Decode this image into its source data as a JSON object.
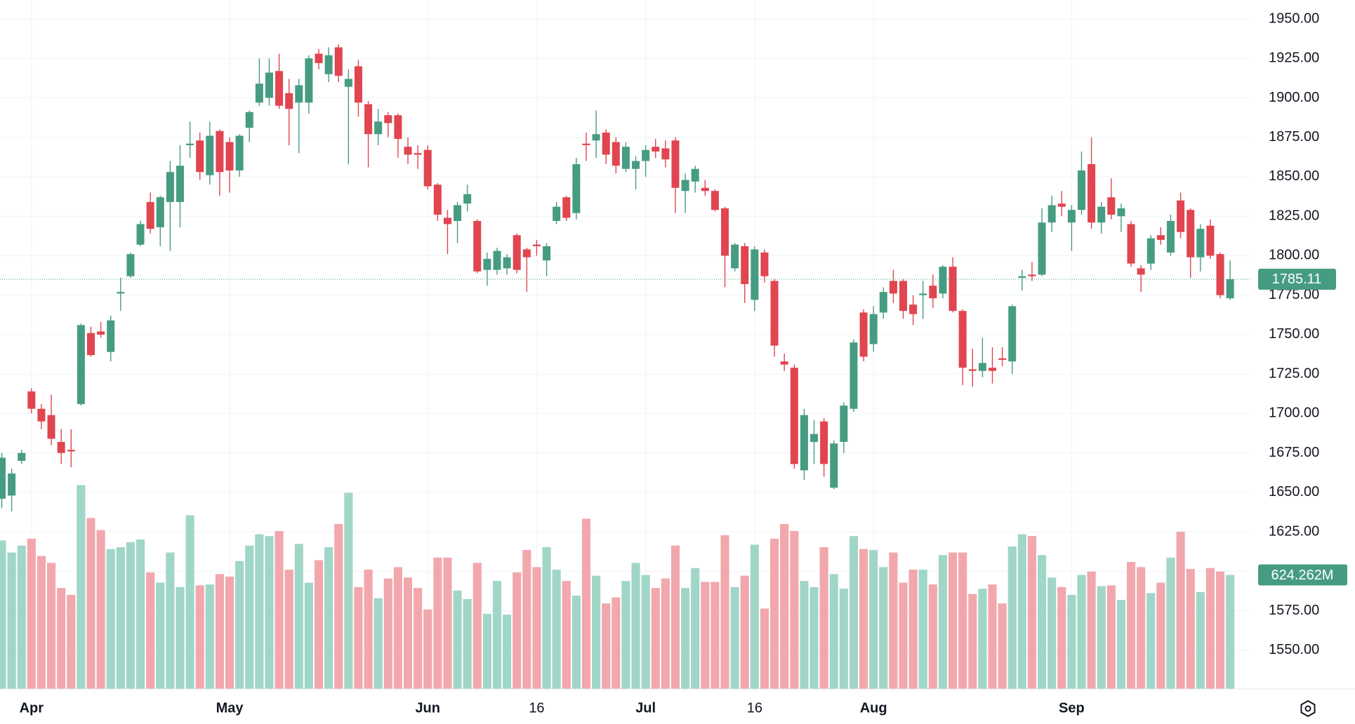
{
  "chart_data": {
    "type": "candlestick",
    "categories": [
      null,
      null,
      null,
      "Apr",
      null,
      null,
      null,
      null,
      null,
      null,
      null,
      null,
      null,
      null,
      null,
      null,
      null,
      null,
      null,
      null,
      null,
      null,
      null,
      "May",
      null,
      null,
      null,
      null,
      null,
      null,
      null,
      null,
      null,
      null,
      null,
      null,
      null,
      null,
      null,
      null,
      null,
      null,
      null,
      "Jun",
      null,
      null,
      null,
      null,
      null,
      null,
      null,
      null,
      null,
      null,
      "16",
      null,
      null,
      null,
      null,
      null,
      null,
      null,
      null,
      null,
      null,
      "Jul",
      null,
      null,
      null,
      null,
      null,
      null,
      null,
      null,
      null,
      null,
      "16",
      null,
      null,
      null,
      null,
      null,
      null,
      null,
      null,
      null,
      null,
      null,
      "Aug",
      null,
      null,
      null,
      null,
      null,
      null,
      null,
      null,
      null,
      null,
      null,
      null,
      null,
      null,
      null,
      null,
      null,
      null,
      null,
      "Sep",
      null,
      null,
      null,
      null,
      null,
      null,
      null,
      null,
      null,
      null,
      null,
      null,
      null,
      null,
      null,
      null
    ],
    "open": [
      1646,
      1648,
      1670,
      1714,
      1703,
      1699,
      1682,
      1677,
      1706,
      1751,
      1752,
      1739,
      1776,
      1787,
      1807,
      1834,
      1818,
      1834,
      1834,
      1870,
      1873,
      1851,
      1879,
      1872,
      1854,
      1881,
      1897,
      1900,
      1917,
      1903,
      1897,
      1897,
      1928,
      1915,
      1932,
      1907,
      1920,
      1896,
      1877,
      1889,
      1889,
      1869,
      1865,
      1867,
      1845,
      1824,
      1822,
      1833,
      1822,
      1791,
      1791,
      1792,
      1813,
      1804,
      1807,
      1797,
      1822,
      1837,
      1827,
      1871,
      1873,
      1878,
      1872,
      1855,
      1855,
      1860,
      1869,
      1868,
      1873,
      1841,
      1847,
      1843,
      1841,
      1830,
      1792,
      1806,
      1772,
      1802,
      1784,
      1733,
      1729,
      1664,
      1682,
      1695,
      1653,
      1682,
      1703,
      1764,
      1744,
      1764,
      1784,
      1784,
      1769,
      1775,
      1781,
      1776,
      1793,
      1765,
      1728,
      1727,
      1729,
      1735,
      1733,
      1786,
      1788,
      1788,
      1821,
      1833,
      1821,
      1829,
      1858,
      1821,
      1837,
      1825,
      1820,
      1792,
      1795,
      1813,
      1802,
      1835,
      1829,
      1799,
      1819,
      1801,
      1773
    ],
    "high": [
      1675,
      1665,
      1677,
      1716,
      1706,
      1712,
      1690,
      1690,
      1757,
      1755,
      1758,
      1762,
      1786,
      1802,
      1822,
      1840,
      1838,
      1860,
      1870,
      1885,
      1878,
      1885,
      1880,
      1875,
      1877,
      1892,
      1925,
      1925,
      1928,
      1912,
      1912,
      1927,
      1931,
      1932,
      1934,
      1918,
      1924,
      1898,
      1893,
      1891,
      1890,
      1875,
      1870,
      1870,
      1846,
      1829,
      1834,
      1845,
      1823,
      1802,
      1805,
      1801,
      1814,
      1805,
      1810,
      1808,
      1834,
      1838,
      1862,
      1878,
      1892,
      1880,
      1875,
      1872,
      1863,
      1870,
      1874,
      1873,
      1875,
      1852,
      1857,
      1848,
      1842,
      1831,
      1808,
      1808,
      1806,
      1804,
      1785,
      1738,
      1731,
      1703,
      1696,
      1697,
      1683,
      1707,
      1747,
      1766,
      1768,
      1780,
      1791,
      1785,
      1775,
      1784,
      1788,
      1794,
      1799,
      1766,
      1741,
      1748,
      1742,
      1742,
      1769,
      1791,
      1796,
      1830,
      1838,
      1841,
      1832,
      1866,
      1875,
      1834,
      1849,
      1833,
      1822,
      1794,
      1813,
      1818,
      1826,
      1840,
      1830,
      1820,
      1823,
      1802,
      1797
    ],
    "low": [
      1640,
      1638,
      1668,
      1700,
      1690,
      1680,
      1668,
      1666,
      1705,
      1736,
      1748,
      1733,
      1765,
      1786,
      1806,
      1814,
      1806,
      1803,
      1818,
      1862,
      1848,
      1845,
      1838,
      1840,
      1850,
      1872,
      1895,
      1895,
      1893,
      1870,
      1865,
      1890,
      1918,
      1910,
      1910,
      1858,
      1888,
      1856,
      1870,
      1875,
      1862,
      1858,
      1855,
      1842,
      1822,
      1801,
      1808,
      1828,
      1789,
      1781,
      1788,
      1788,
      1789,
      1777,
      1800,
      1787,
      1820,
      1822,
      1823,
      1860,
      1862,
      1858,
      1852,
      1853,
      1842,
      1850,
      1862,
      1856,
      1827,
      1827,
      1840,
      1838,
      1828,
      1780,
      1790,
      1770,
      1765,
      1783,
      1736,
      1727,
      1665,
      1658,
      1668,
      1660,
      1652,
      1675,
      1701,
      1733,
      1739,
      1760,
      1770,
      1760,
      1756,
      1760,
      1767,
      1773,
      1764,
      1718,
      1717,
      1723,
      1719,
      1730,
      1725,
      1778,
      1784,
      1787,
      1815,
      1825,
      1803,
      1826,
      1817,
      1814,
      1823,
      1815,
      1793,
      1777,
      1791,
      1807,
      1800,
      1811,
      1786,
      1790,
      1798,
      1773,
      1772
    ],
    "close": [
      1672,
      1662,
      1675,
      1703,
      1695,
      1684,
      1675,
      1676,
      1756,
      1737,
      1750,
      1759,
      1777,
      1801,
      1820,
      1817,
      1837,
      1853,
      1857,
      1871,
      1853,
      1876,
      1853,
      1854,
      1876,
      1891,
      1909,
      1916,
      1895,
      1893,
      1908,
      1925,
      1922,
      1927,
      1914,
      1912,
      1897,
      1877,
      1885,
      1884,
      1874,
      1864,
      1864,
      1844,
      1826,
      1820,
      1832,
      1839,
      1790,
      1798,
      1803,
      1799,
      1791,
      1799,
      1806,
      1806,
      1831,
      1824,
      1858,
      1870,
      1877,
      1864,
      1857,
      1869,
      1860,
      1867,
      1866,
      1861,
      1843,
      1848,
      1855,
      1841,
      1829,
      1800,
      1807,
      1782,
      1804,
      1787,
      1743,
      1731,
      1668,
      1699,
      1687,
      1668,
      1681,
      1705,
      1745,
      1736,
      1763,
      1777,
      1776,
      1765,
      1763,
      1776,
      1773,
      1793,
      1765,
      1729,
      1727,
      1732,
      1727,
      1734,
      1768,
      1787,
      1787,
      1821,
      1832,
      1831,
      1829,
      1854,
      1821,
      1831,
      1826,
      1830,
      1795,
      1788,
      1811,
      1810,
      1822,
      1815,
      1799,
      1817,
      1800,
      1775,
      1785.11
    ],
    "volume": [
      813,
      747,
      785,
      823,
      728,
      690,
      553,
      515,
      1116,
      936,
      870,
      766,
      776,
      804,
      818,
      638,
      582,
      747,
      558,
      951,
      567,
      572,
      629,
      615,
      700,
      785,
      847,
      837,
      865,
      653,
      794,
      582,
      705,
      776,
      903,
      1074,
      558,
      653,
      497,
      605,
      667,
      610,
      553,
      435,
      719,
      719,
      539,
      492,
      690,
      411,
      591,
      407,
      638,
      761,
      667,
      776,
      653,
      591,
      511,
      932,
      620,
      468,
      501,
      591,
      690,
      624,
      553,
      605,
      785,
      553,
      662,
      586,
      586,
      842,
      558,
      620,
      790,
      440,
      823,
      903,
      865,
      591,
      558,
      776,
      629,
      549,
      837,
      766,
      761,
      667,
      747,
      582,
      653,
      653,
      572,
      733,
      747,
      747,
      520,
      549,
      572,
      468,
      780,
      847,
      837,
      733,
      610,
      558,
      515,
      624,
      643,
      563,
      567,
      487,
      695,
      667,
      525,
      582,
      719,
      861,
      657,
      530,
      662,
      643,
      624.262
    ],
    "volume_value_labels": [
      null,
      null,
      null,
      null,
      null,
      null,
      null,
      null,
      null,
      null,
      null,
      null,
      null,
      null,
      null,
      null,
      null,
      null,
      null,
      null,
      null,
      null,
      null,
      null,
      null,
      null,
      null,
      null,
      null,
      null,
      null,
      null,
      null,
      null,
      null,
      null,
      null,
      null,
      null,
      null,
      null,
      null,
      null,
      null,
      null,
      null,
      null,
      null,
      null,
      null,
      null,
      null,
      null,
      null,
      null,
      null,
      null,
      null,
      null,
      null,
      null,
      null,
      null,
      null,
      null,
      null,
      null,
      null,
      null,
      null,
      null,
      null,
      null,
      null,
      null,
      null,
      null,
      null,
      null,
      null,
      null,
      null,
      null,
      null,
      null,
      null,
      null,
      null,
      null,
      null,
      null,
      null,
      null,
      null,
      null,
      null,
      null,
      null,
      null,
      null,
      null,
      null,
      null,
      null,
      null,
      null,
      null,
      null,
      null,
      null,
      null,
      null,
      null,
      null,
      null,
      null,
      null,
      null,
      null,
      null,
      null,
      null,
      null,
      null,
      "624.262M"
    ],
    "ylim": [
      1525.5,
      1962
    ],
    "yticks": [
      {
        "value": 1550,
        "label": "1550.00"
      },
      {
        "value": 1575,
        "label": "1575.00"
      },
      {
        "value": 1600,
        "label": "1600.00"
      },
      {
        "value": 1625,
        "label": "1625.00"
      },
      {
        "value": 1650,
        "label": "1650.00"
      },
      {
        "value": 1675,
        "label": "1675.00"
      },
      {
        "value": 1700,
        "label": "1700.00"
      },
      {
        "value": 1725,
        "label": "1725.00"
      },
      {
        "value": 1750,
        "label": "1750.00"
      },
      {
        "value": 1775,
        "label": "1775.00"
      },
      {
        "value": 1800,
        "label": "1800.00"
      },
      {
        "value": 1825,
        "label": "1825.00"
      },
      {
        "value": 1850,
        "label": "1850.00"
      },
      {
        "value": 1875,
        "label": "1875.00"
      },
      {
        "value": 1900,
        "label": "1900.00"
      },
      {
        "value": 1925,
        "label": "1925.00"
      },
      {
        "value": 1950,
        "label": "1950.00"
      }
    ],
    "grid": true,
    "up_color": "#469c82",
    "down_color": "#e04550",
    "volume_up_color": "#a0d6c8",
    "volume_down_color": "#f2a7ad"
  }
}
